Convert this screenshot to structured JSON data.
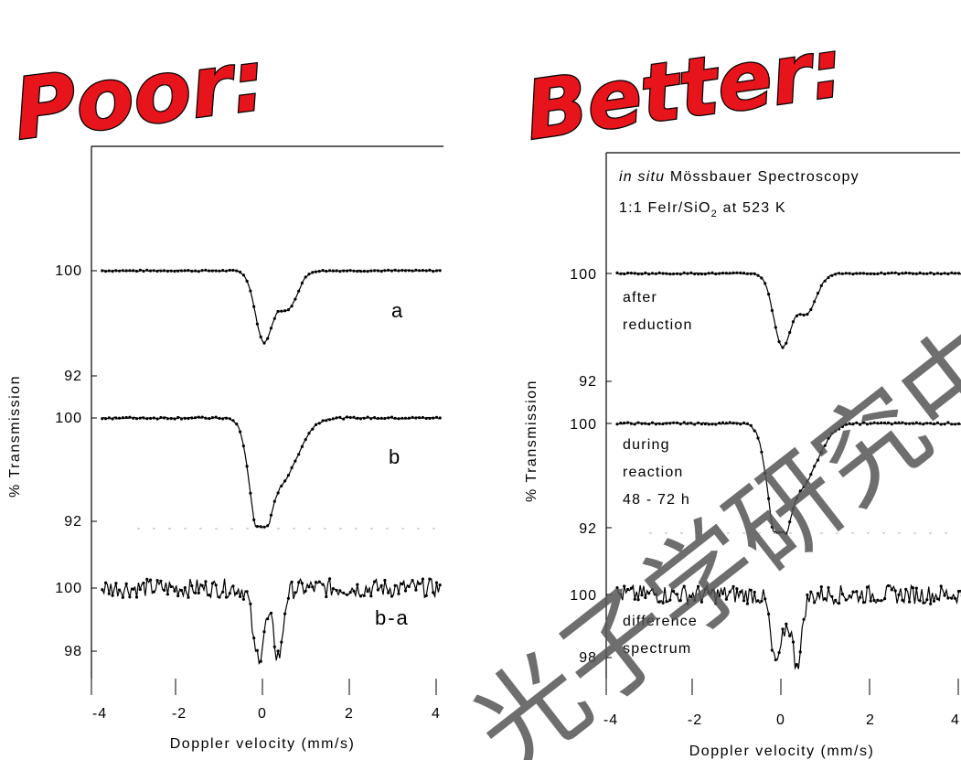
{
  "headings": {
    "left": "Poor:",
    "right": "Better:"
  },
  "info": {
    "line1_italic": "in situ",
    "line1_rest": " Mössbauer Spectroscopy",
    "line2_a": "1:1 FeIr/SiO",
    "line2_sub": "2",
    "line2_b": " at 523 K"
  },
  "watermark": "光子学研究中心",
  "chart_data": [
    {
      "type": "scatter",
      "title": "Poor:",
      "xlabel": "Doppler velocity (mm/s)",
      "ylabel": "% Transmission",
      "xlim": [
        -4,
        4
      ],
      "x_ticks": [
        "-4",
        "-2",
        "0",
        "2",
        "4"
      ],
      "stacked_spectra": [
        {
          "label": "a",
          "y_ticks": [
            "100",
            "92"
          ],
          "baseline": 100,
          "min_value": 94.7
        },
        {
          "label": "b",
          "y_ticks": [
            "100",
            "92"
          ],
          "baseline": 100,
          "min_value": 92.0
        },
        {
          "label": "b-a",
          "y_ticks": [
            "100",
            "98"
          ],
          "baseline": 100,
          "min_value": 98.0
        }
      ]
    },
    {
      "type": "scatter",
      "title": "Better:",
      "xlabel": "Doppler velocity (mm/s)",
      "ylabel": "% Transmission",
      "xlim": [
        -4,
        4
      ],
      "x_ticks": [
        "-4",
        "-2",
        "0",
        "2",
        "4"
      ],
      "stacked_spectra": [
        {
          "label": "after reduction",
          "label_lines": [
            "after",
            "reduction"
          ],
          "y_ticks": [
            "100",
            "92"
          ],
          "baseline": 100,
          "min_value": 94.7
        },
        {
          "label": "during reaction 48 - 72 h",
          "label_lines": [
            "during",
            "reaction",
            "48 - 72 h"
          ],
          "y_ticks": [
            "100",
            "92"
          ],
          "baseline": 100,
          "min_value": 92.0
        },
        {
          "label": "difference spectrum",
          "label_lines": [
            "difference",
            "spectrum"
          ],
          "y_ticks": [
            "100",
            "98"
          ],
          "baseline": 100,
          "min_value": 98.0
        }
      ]
    }
  ]
}
